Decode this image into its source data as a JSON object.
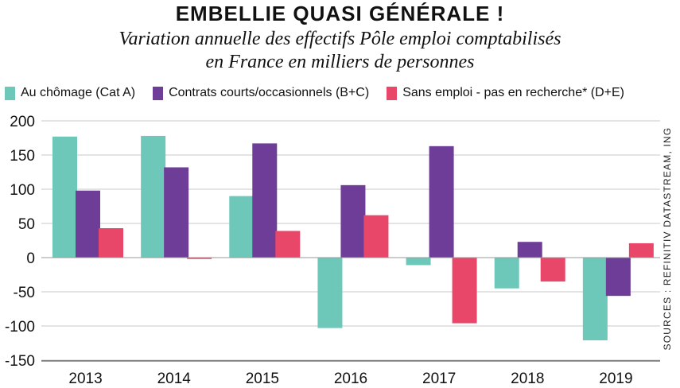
{
  "title": "EMBELLIE QUASI GÉNÉRALE !",
  "subtitle_line1": "Variation annuelle des effectifs Pôle emploi comptabilisés",
  "subtitle_line2": "en France en milliers de personnes",
  "source": "SOURCES : REFINITIV DATASTREAM, ING",
  "colors": {
    "teal": "#6ec8ba",
    "purple": "#6e3d97",
    "pink": "#e8476a",
    "grid": "#c8c8c8"
  },
  "legend": [
    {
      "label": "Au chômage (Cat A)",
      "color": "#6ec8ba"
    },
    {
      "label": "Contrats courts/occasionnels (B+C)",
      "color": "#6e3d97"
    },
    {
      "label": "Sans emploi - pas en recherche* (D+E)",
      "color": "#e8476a"
    }
  ],
  "chart_data": {
    "type": "bar",
    "categories": [
      "2013",
      "2014",
      "2015",
      "2016",
      "2017",
      "2018",
      "2019"
    ],
    "series": [
      {
        "name": "Au chômage (Cat A)",
        "values": [
          177,
          178,
          90,
          -103,
          -11,
          -45,
          -121
        ]
      },
      {
        "name": "Contrats courts/occasionnels (B+C)",
        "values": [
          98,
          132,
          167,
          106,
          163,
          23,
          -56
        ]
      },
      {
        "name": "Sans emploi - pas en recherche* (D+E)",
        "values": [
          43,
          -2,
          39,
          62,
          -96,
          -35,
          21
        ]
      }
    ],
    "ylim": [
      -150,
      200
    ],
    "yticks": [
      "200",
      "150",
      "100",
      "50",
      "0",
      "-50",
      "-100",
      "-150"
    ],
    "grid": true,
    "legend_position": "top-left"
  }
}
